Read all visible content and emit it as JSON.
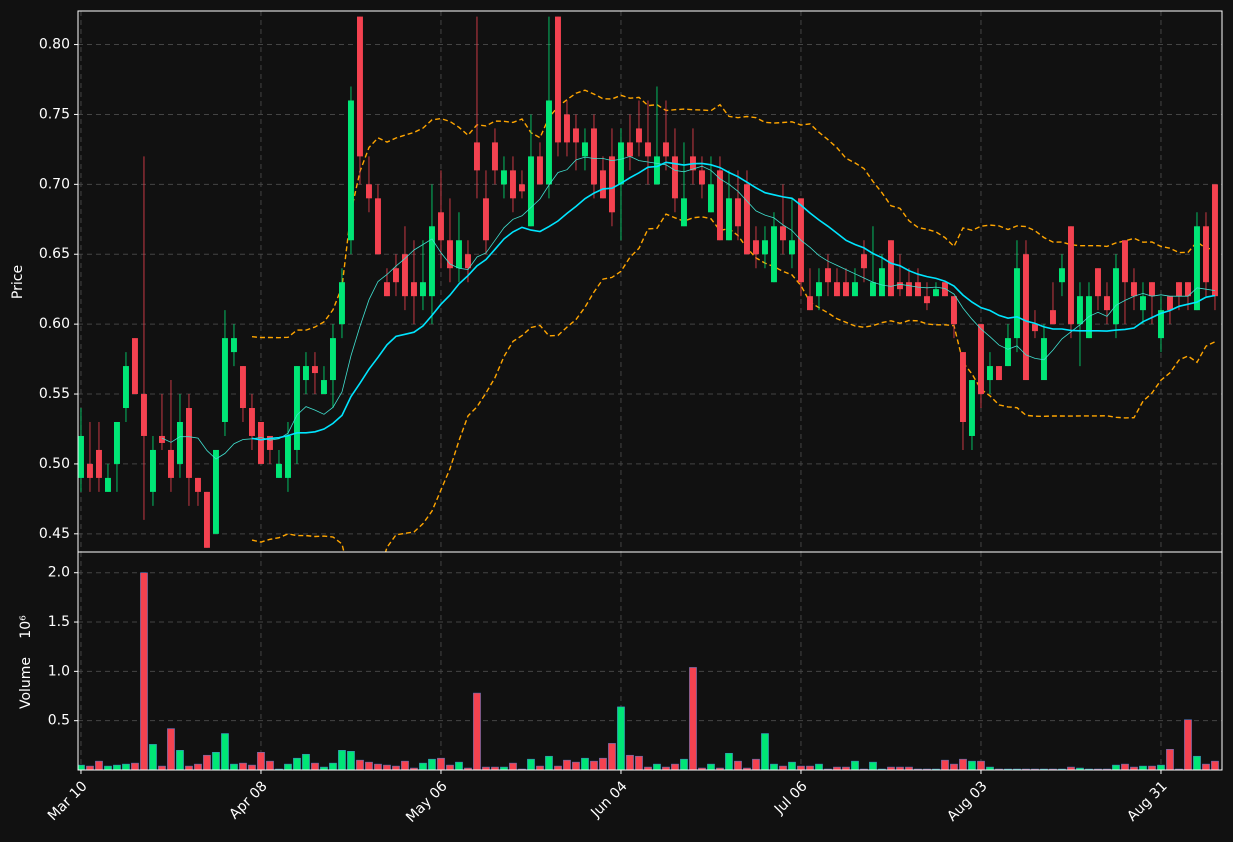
{
  "chart_data": [
    {
      "type": "candlestick",
      "ylabel": "Price",
      "open": [
        0.49,
        0.5,
        0.51,
        0.48,
        0.5,
        0.54,
        0.59,
        0.55,
        0.48,
        0.52,
        0.51,
        0.5,
        0.54,
        0.49,
        0.48,
        0.45,
        0.53,
        0.58,
        0.57,
        0.54,
        0.53,
        0.52,
        0.49,
        0.49,
        0.51,
        0.56,
        0.57,
        0.55,
        0.56,
        0.6,
        0.66,
        0.82,
        0.7,
        0.69,
        0.63,
        0.64,
        0.65,
        0.63,
        0.62,
        0.62,
        0.68,
        0.66,
        0.64,
        0.65,
        0.73,
        0.69,
        0.73,
        0.7,
        0.71,
        0.7,
        0.67,
        0.72,
        0.7,
        0.82,
        0.75,
        0.74,
        0.72,
        0.74,
        0.71,
        0.72,
        0.7,
        0.73,
        0.74,
        0.73,
        0.7,
        0.73,
        0.72,
        0.67,
        0.72,
        0.71,
        0.68,
        0.71,
        0.66,
        0.69,
        0.7,
        0.66,
        0.65,
        0.63,
        0.67,
        0.65,
        0.69,
        0.62,
        0.62,
        0.64,
        0.63,
        0.63,
        0.62,
        0.65,
        0.62,
        0.62,
        0.66,
        0.63,
        0.63,
        0.63,
        0.62,
        0.62,
        0.63,
        0.62,
        0.58,
        0.52,
        0.6,
        0.56,
        0.57,
        0.57,
        0.59,
        0.65,
        0.6,
        0.56,
        0.61,
        0.63,
        0.67,
        0.6,
        0.59,
        0.64,
        0.62,
        0.6,
        0.66,
        0.63,
        0.61,
        0.63,
        0.59,
        0.62,
        0.63,
        0.63,
        0.61,
        0.67,
        0.7
      ],
      "high": [
        0.54,
        0.53,
        0.53,
        0.5,
        0.53,
        0.58,
        0.59,
        0.72,
        0.52,
        0.55,
        0.56,
        0.55,
        0.55,
        0.49,
        0.48,
        0.51,
        0.61,
        0.6,
        0.57,
        0.55,
        0.53,
        0.52,
        0.51,
        0.53,
        0.57,
        0.58,
        0.58,
        0.57,
        0.6,
        0.64,
        0.77,
        0.82,
        0.72,
        0.7,
        0.64,
        0.65,
        0.67,
        0.66,
        0.66,
        0.7,
        0.71,
        0.69,
        0.68,
        0.66,
        0.82,
        0.71,
        0.74,
        0.72,
        0.72,
        0.71,
        0.75,
        0.73,
        0.82,
        0.82,
        0.76,
        0.75,
        0.74,
        0.75,
        0.72,
        0.74,
        0.74,
        0.75,
        0.76,
        0.76,
        0.77,
        0.76,
        0.74,
        0.73,
        0.74,
        0.72,
        0.72,
        0.72,
        0.71,
        0.71,
        0.71,
        0.67,
        0.67,
        0.68,
        0.7,
        0.69,
        0.69,
        0.64,
        0.64,
        0.65,
        0.64,
        0.64,
        0.64,
        0.66,
        0.67,
        0.65,
        0.66,
        0.65,
        0.64,
        0.64,
        0.63,
        0.63,
        0.63,
        0.62,
        0.58,
        0.56,
        0.6,
        0.58,
        0.57,
        0.6,
        0.66,
        0.66,
        0.61,
        0.6,
        0.63,
        0.65,
        0.67,
        0.63,
        0.63,
        0.64,
        0.63,
        0.65,
        0.66,
        0.64,
        0.63,
        0.63,
        0.62,
        0.62,
        0.63,
        0.63,
        0.68,
        0.68,
        0.7
      ],
      "low": [
        0.48,
        0.48,
        0.48,
        0.48,
        0.48,
        0.53,
        0.55,
        0.46,
        0.47,
        0.51,
        0.48,
        0.49,
        0.47,
        0.47,
        0.44,
        0.45,
        0.52,
        0.57,
        0.53,
        0.51,
        0.5,
        0.5,
        0.49,
        0.48,
        0.5,
        0.55,
        0.55,
        0.55,
        0.54,
        0.59,
        0.65,
        0.7,
        0.68,
        0.65,
        0.62,
        0.62,
        0.61,
        0.6,
        0.61,
        0.6,
        0.64,
        0.63,
        0.63,
        0.63,
        0.69,
        0.65,
        0.7,
        0.69,
        0.68,
        0.69,
        0.67,
        0.7,
        0.69,
        0.72,
        0.72,
        0.71,
        0.71,
        0.69,
        0.69,
        0.67,
        0.66,
        0.71,
        0.72,
        0.7,
        0.7,
        0.71,
        0.68,
        0.67,
        0.7,
        0.69,
        0.68,
        0.66,
        0.66,
        0.66,
        0.65,
        0.64,
        0.64,
        0.63,
        0.65,
        0.64,
        0.62,
        0.61,
        0.61,
        0.62,
        0.62,
        0.62,
        0.62,
        0.63,
        0.62,
        0.62,
        0.62,
        0.62,
        0.62,
        0.62,
        0.61,
        0.62,
        0.62,
        0.59,
        0.51,
        0.51,
        0.54,
        0.55,
        0.56,
        0.57,
        0.58,
        0.56,
        0.59,
        0.56,
        0.6,
        0.62,
        0.59,
        0.57,
        0.59,
        0.61,
        0.6,
        0.59,
        0.6,
        0.61,
        0.6,
        0.6,
        0.58,
        0.6,
        0.61,
        0.61,
        0.61,
        0.62,
        0.61
      ],
      "close": [
        0.52,
        0.49,
        0.49,
        0.49,
        0.53,
        0.57,
        0.55,
        0.52,
        0.51,
        0.515,
        0.49,
        0.53,
        0.49,
        0.48,
        0.44,
        0.51,
        0.59,
        0.59,
        0.54,
        0.52,
        0.5,
        0.51,
        0.5,
        0.52,
        0.57,
        0.57,
        0.565,
        0.56,
        0.59,
        0.63,
        0.76,
        0.72,
        0.69,
        0.65,
        0.62,
        0.63,
        0.62,
        0.62,
        0.63,
        0.67,
        0.66,
        0.64,
        0.66,
        0.64,
        0.71,
        0.66,
        0.71,
        0.71,
        0.69,
        0.695,
        0.72,
        0.7,
        0.76,
        0.73,
        0.73,
        0.73,
        0.73,
        0.7,
        0.69,
        0.68,
        0.73,
        0.72,
        0.73,
        0.72,
        0.72,
        0.72,
        0.69,
        0.69,
        0.71,
        0.7,
        0.7,
        0.66,
        0.69,
        0.67,
        0.65,
        0.65,
        0.66,
        0.67,
        0.66,
        0.66,
        0.63,
        0.61,
        0.63,
        0.63,
        0.62,
        0.62,
        0.63,
        0.64,
        0.63,
        0.64,
        0.62,
        0.625,
        0.62,
        0.62,
        0.615,
        0.625,
        0.62,
        0.6,
        0.53,
        0.56,
        0.55,
        0.57,
        0.56,
        0.59,
        0.64,
        0.56,
        0.595,
        0.59,
        0.6,
        0.64,
        0.6,
        0.62,
        0.62,
        0.62,
        0.61,
        0.64,
        0.63,
        0.62,
        0.62,
        0.62,
        0.61,
        0.61,
        0.62,
        0.62,
        0.67,
        0.63,
        0.62
      ],
      "up_color": "#00e676",
      "down_color": "#f44250",
      "xlim": [
        -0.33,
        126.78
      ],
      "ylim": [
        0.437,
        0.824
      ],
      "yticks": [
        0.45,
        {
          "value": 0.5,
          "label": "0.50"
        },
        0.55,
        {
          "value": 0.6,
          "label": "0.60"
        },
        0.65,
        {
          "value": 0.7,
          "label": "0.70"
        },
        0.75,
        {
          "value": 0.8,
          "label": "0.80"
        }
      ],
      "grid": true,
      "moving_averages": [
        {
          "window": 10,
          "color": "#40e0d0",
          "width": 0.8
        },
        {
          "window": 20,
          "color": "#00e5ff",
          "width": 1.6
        }
      ],
      "bollinger": {
        "window": 20,
        "k": 2,
        "color": "#ffa500"
      }
    },
    {
      "type": "bar",
      "ylabel": "Volume",
      "offset_label": "10⁶",
      "categories": [
        "Mar 10",
        null,
        null,
        null,
        null,
        null,
        null,
        null,
        null,
        null,
        null,
        null,
        null,
        null,
        null,
        null,
        null,
        null,
        null,
        null,
        "Apr 08",
        null,
        null,
        null,
        null,
        null,
        null,
        null,
        null,
        null,
        null,
        null,
        null,
        null,
        null,
        null,
        null,
        null,
        null,
        null,
        "May 06",
        null,
        null,
        null,
        null,
        null,
        null,
        null,
        null,
        null,
        null,
        null,
        null,
        null,
        null,
        null,
        null,
        null,
        null,
        null,
        "Jun 04",
        null,
        null,
        null,
        null,
        null,
        null,
        null,
        null,
        null,
        null,
        null,
        null,
        null,
        null,
        null,
        null,
        null,
        null,
        null,
        "Jul 06",
        null,
        null,
        null,
        null,
        null,
        null,
        null,
        null,
        null,
        null,
        null,
        null,
        null,
        null,
        null,
        null,
        null,
        null,
        null,
        "Aug 03",
        null,
        null,
        null,
        null,
        null,
        null,
        null,
        null,
        null,
        null,
        null,
        null,
        null,
        null,
        null,
        null,
        null,
        null,
        null,
        "Aug 31",
        null,
        null,
        null,
        null,
        null,
        null
      ],
      "values": [
        0.05,
        0.04,
        0.09,
        0.04,
        0.05,
        0.06,
        0.07,
        2.0,
        0.26,
        0.04,
        0.42,
        0.2,
        0.04,
        0.06,
        0.15,
        0.18,
        0.37,
        0.06,
        0.07,
        0.05,
        0.18,
        0.09,
        0.01,
        0.06,
        0.12,
        0.16,
        0.07,
        0.03,
        0.07,
        0.2,
        0.19,
        0.1,
        0.08,
        0.06,
        0.05,
        0.04,
        0.09,
        0.02,
        0.07,
        0.11,
        0.12,
        0.05,
        0.08,
        0.02,
        0.78,
        0.03,
        0.03,
        0.03,
        0.07,
        0.01,
        0.11,
        0.04,
        0.14,
        0.04,
        0.1,
        0.08,
        0.12,
        0.09,
        0.12,
        0.27,
        0.64,
        0.15,
        0.14,
        0.03,
        0.06,
        0.03,
        0.06,
        0.11,
        1.04,
        0.02,
        0.06,
        0.02,
        0.17,
        0.09,
        0.02,
        0.11,
        0.37,
        0.06,
        0.04,
        0.08,
        0.04,
        0.04,
        0.06,
        0.01,
        0.03,
        0.03,
        0.09,
        0.01,
        0.08,
        0.01,
        0.03,
        0.03,
        0.03,
        0.01,
        0.01,
        0.01,
        0.1,
        0.06,
        0.11,
        0.09,
        0.09,
        0.03,
        0.01,
        0.01,
        0.01,
        0.01,
        0.01,
        0.01,
        0.01,
        0.01,
        0.03,
        0.02,
        0.01,
        0.01,
        0.01,
        0.05,
        0.06,
        0.03,
        0.04,
        0.04,
        0.05,
        0.21,
        0.01,
        0.51,
        0.14,
        0.06,
        0.09
      ],
      "xlim": [
        -0.33,
        126.78
      ],
      "ylim": [
        0,
        2.21
      ],
      "yticks": [
        0.5,
        {
          "value": 1,
          "label": "1.0"
        },
        1.5,
        {
          "value": 2,
          "label": "2.0"
        }
      ],
      "grid": true
    }
  ]
}
